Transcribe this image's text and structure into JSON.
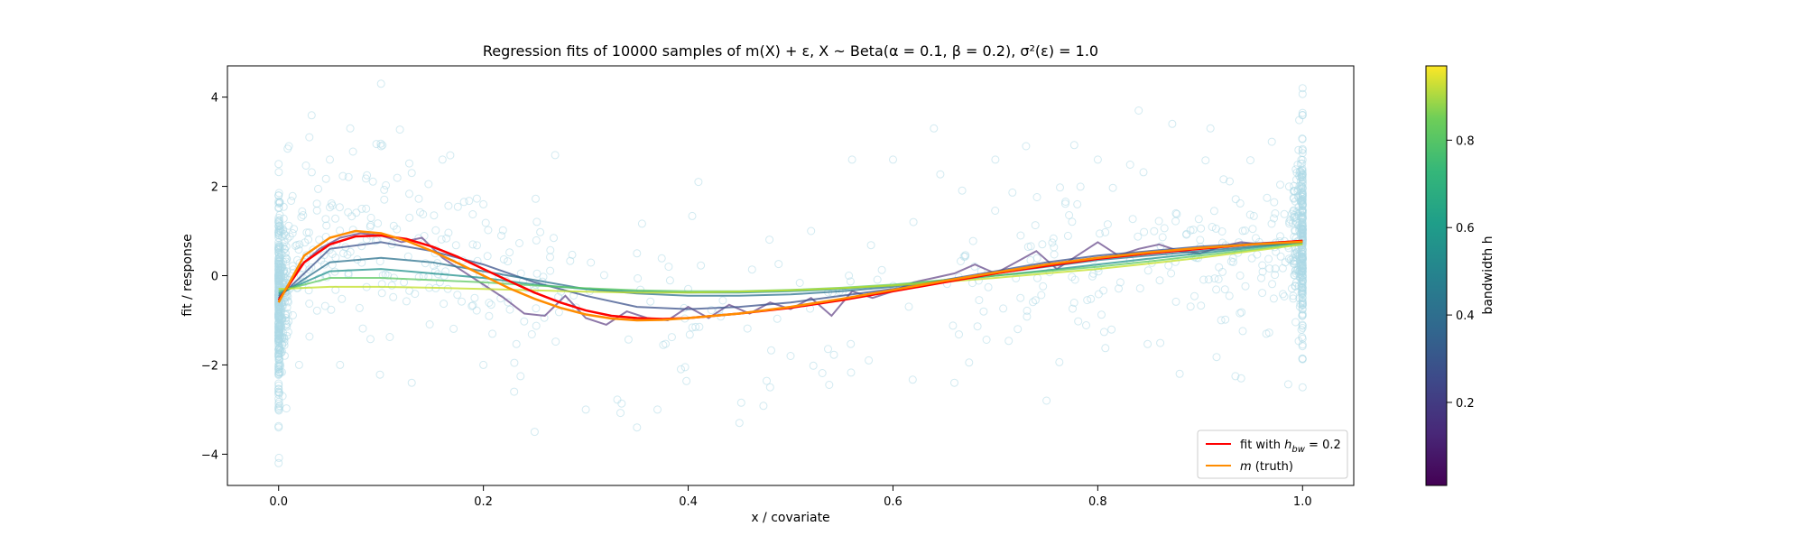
{
  "chart_data": {
    "type": "scatter",
    "title": "Regression fits of 10000 samples of m(X) + ε, X ~ Beta(α = 0.1, β = 0.2), σ²(ε) = 1.0",
    "xlabel": "x / covariate",
    "ylabel": "fit / response",
    "xlim": [
      -0.05,
      1.05
    ],
    "ylim": [
      -4.7,
      4.7
    ],
    "x_ticks": [
      0.0,
      0.2,
      0.4,
      0.6,
      0.8,
      1.0
    ],
    "x_tick_labels": [
      "0.0",
      "0.2",
      "0.4",
      "0.6",
      "0.8",
      "1.0"
    ],
    "y_ticks": [
      -4,
      -2,
      0,
      2,
      4
    ],
    "y_tick_labels": [
      "−4",
      "−2",
      "0",
      "2",
      "4"
    ],
    "grid": false,
    "scatter": {
      "marker": "hollow circle",
      "color": "#add8e6",
      "sample_points": [
        [
          0.0,
          -4.2
        ],
        [
          0.0,
          -3.4
        ],
        [
          0.0,
          -2.6
        ],
        [
          0.0,
          2.5
        ],
        [
          0.0,
          1.8
        ],
        [
          0.01,
          2.9
        ],
        [
          0.02,
          -2.0
        ],
        [
          0.03,
          3.1
        ],
        [
          0.05,
          2.6
        ],
        [
          0.07,
          3.3
        ],
        [
          0.1,
          2.9
        ],
        [
          0.13,
          2.3
        ],
        [
          0.16,
          2.6
        ],
        [
          0.2,
          -2.0
        ],
        [
          0.23,
          -2.6
        ],
        [
          0.25,
          -3.5
        ],
        [
          0.27,
          2.7
        ],
        [
          0.3,
          -3.0
        ],
        [
          0.35,
          -3.4
        ],
        [
          0.37,
          -3.0
        ],
        [
          0.41,
          2.1
        ],
        [
          0.45,
          -3.3
        ],
        [
          0.48,
          -2.5
        ],
        [
          0.52,
          1.0
        ],
        [
          0.56,
          2.6
        ],
        [
          0.6,
          2.6
        ],
        [
          0.64,
          3.3
        ],
        [
          0.66,
          -2.4
        ],
        [
          0.7,
          2.6
        ],
        [
          0.73,
          2.9
        ],
        [
          0.75,
          -2.8
        ],
        [
          0.8,
          2.6
        ],
        [
          0.84,
          3.7
        ],
        [
          0.88,
          -2.2
        ],
        [
          0.91,
          3.3
        ],
        [
          0.94,
          -2.3
        ],
        [
          0.97,
          3.0
        ],
        [
          1.0,
          4.2
        ],
        [
          1.0,
          -2.5
        ],
        [
          1.0,
          3.6
        ],
        [
          0.1,
          4.3
        ],
        [
          0.06,
          -2.0
        ],
        [
          0.13,
          -2.4
        ],
        [
          0.35,
          0.5
        ],
        [
          0.5,
          -1.8
        ],
        [
          0.78,
          1.6
        ],
        [
          0.9,
          0.8
        ],
        [
          0.2,
          1.6
        ],
        [
          0.4,
          -0.3
        ],
        [
          0.62,
          1.2
        ]
      ]
    },
    "bandwidth_fits": [
      {
        "h": 0.01,
        "color": "#6a4c8c",
        "x": [
          0.0,
          0.02,
          0.04,
          0.06,
          0.08,
          0.1,
          0.12,
          0.14,
          0.16,
          0.18,
          0.2,
          0.22,
          0.24,
          0.26,
          0.28,
          0.3,
          0.32,
          0.34,
          0.36,
          0.38,
          0.4,
          0.42,
          0.44,
          0.46,
          0.48,
          0.5,
          0.52,
          0.54,
          0.56,
          0.58,
          0.6,
          0.62,
          0.64,
          0.66,
          0.68,
          0.7,
          0.72,
          0.74,
          0.76,
          0.78,
          0.8,
          0.82,
          0.84,
          0.86,
          0.88,
          0.9,
          0.92,
          0.94,
          0.96,
          0.98,
          1.0
        ],
        "y": [
          -0.55,
          0.2,
          0.6,
          0.85,
          0.95,
          0.9,
          0.75,
          0.85,
          0.4,
          0.1,
          -0.2,
          -0.5,
          -0.85,
          -0.9,
          -0.45,
          -0.95,
          -1.1,
          -0.8,
          -0.95,
          -1.0,
          -0.7,
          -0.95,
          -0.65,
          -0.85,
          -0.6,
          -0.75,
          -0.5,
          -0.9,
          -0.35,
          -0.5,
          -0.35,
          -0.15,
          -0.05,
          0.05,
          0.25,
          0.05,
          0.3,
          0.55,
          0.15,
          0.45,
          0.75,
          0.45,
          0.6,
          0.7,
          0.55,
          0.5,
          0.65,
          0.75,
          0.7,
          0.72,
          0.78
        ]
      },
      {
        "h": 0.1,
        "color": "#3b528b",
        "x": [
          0.0,
          0.05,
          0.1,
          0.15,
          0.2,
          0.25,
          0.3,
          0.35,
          0.4,
          0.45,
          0.5,
          0.55,
          0.6,
          0.65,
          0.7,
          0.75,
          0.8,
          0.85,
          0.9,
          0.95,
          1.0
        ],
        "y": [
          -0.5,
          0.6,
          0.75,
          0.55,
          0.25,
          -0.15,
          -0.45,
          -0.7,
          -0.75,
          -0.7,
          -0.6,
          -0.45,
          -0.3,
          -0.1,
          0.1,
          0.3,
          0.45,
          0.55,
          0.65,
          0.72,
          0.78
        ]
      },
      {
        "h": 0.3,
        "color": "#2c728e",
        "x": [
          0.0,
          0.05,
          0.1,
          0.15,
          0.2,
          0.25,
          0.3,
          0.35,
          0.4,
          0.45,
          0.5,
          0.55,
          0.6,
          0.65,
          0.7,
          0.75,
          0.8,
          0.85,
          0.9,
          0.95,
          1.0
        ],
        "y": [
          -0.45,
          0.3,
          0.4,
          0.3,
          0.1,
          -0.1,
          -0.3,
          -0.4,
          -0.45,
          -0.45,
          -0.42,
          -0.35,
          -0.25,
          -0.1,
          0.05,
          0.2,
          0.35,
          0.45,
          0.55,
          0.65,
          0.75
        ]
      },
      {
        "h": 0.5,
        "color": "#21918c",
        "x": [
          0.0,
          0.05,
          0.1,
          0.15,
          0.2,
          0.25,
          0.3,
          0.35,
          0.4,
          0.45,
          0.5,
          0.55,
          0.6,
          0.65,
          0.7,
          0.75,
          0.8,
          0.85,
          0.9,
          0.95,
          1.0
        ],
        "y": [
          -0.4,
          0.1,
          0.15,
          0.05,
          -0.05,
          -0.2,
          -0.3,
          -0.35,
          -0.38,
          -0.38,
          -0.35,
          -0.3,
          -0.22,
          -0.12,
          0.0,
          0.12,
          0.25,
          0.38,
          0.5,
          0.62,
          0.75
        ]
      },
      {
        "h": 0.7,
        "color": "#5ec962",
        "x": [
          0.0,
          0.05,
          0.1,
          0.15,
          0.2,
          0.25,
          0.3,
          0.35,
          0.4,
          0.45,
          0.5,
          0.55,
          0.6,
          0.65,
          0.7,
          0.75,
          0.8,
          0.85,
          0.9,
          0.95,
          1.0
        ],
        "y": [
          -0.35,
          -0.05,
          -0.05,
          -0.1,
          -0.15,
          -0.22,
          -0.28,
          -0.33,
          -0.35,
          -0.35,
          -0.32,
          -0.27,
          -0.2,
          -0.1,
          0.0,
          0.1,
          0.2,
          0.32,
          0.45,
          0.58,
          0.72
        ]
      },
      {
        "h": 0.9,
        "color": "#c2df23",
        "x": [
          0.0,
          0.05,
          0.1,
          0.15,
          0.2,
          0.25,
          0.3,
          0.35,
          0.4,
          0.45,
          0.5,
          0.55,
          0.6,
          0.65,
          0.7,
          0.75,
          0.8,
          0.85,
          0.9,
          0.95,
          1.0
        ],
        "y": [
          -0.3,
          -0.25,
          -0.25,
          -0.27,
          -0.3,
          -0.33,
          -0.36,
          -0.38,
          -0.38,
          -0.36,
          -0.33,
          -0.28,
          -0.22,
          -0.14,
          -0.05,
          0.05,
          0.15,
          0.27,
          0.4,
          0.55,
          0.7
        ]
      }
    ],
    "series": [
      {
        "name": "fit with h_bw = 0.2",
        "color": "#ff0000",
        "x": [
          0.0,
          0.025,
          0.05,
          0.075,
          0.1,
          0.125,
          0.15,
          0.175,
          0.2,
          0.225,
          0.25,
          0.275,
          0.3,
          0.325,
          0.35,
          0.375,
          0.4,
          0.45,
          0.5,
          0.55,
          0.6,
          0.65,
          0.7,
          0.75,
          0.8,
          0.85,
          0.9,
          0.95,
          1.0
        ],
        "y": [
          -0.55,
          0.3,
          0.7,
          0.88,
          0.9,
          0.82,
          0.65,
          0.42,
          0.15,
          -0.12,
          -0.38,
          -0.6,
          -0.78,
          -0.9,
          -0.95,
          -0.97,
          -0.95,
          -0.85,
          -0.72,
          -0.55,
          -0.35,
          -0.15,
          0.05,
          0.22,
          0.38,
          0.5,
          0.6,
          0.7,
          0.78
        ]
      },
      {
        "name": "m (truth)",
        "color": "#ff8c00",
        "x": [
          0.0,
          0.025,
          0.05,
          0.075,
          0.1,
          0.125,
          0.15,
          0.175,
          0.2,
          0.225,
          0.25,
          0.275,
          0.3,
          0.325,
          0.35,
          0.375,
          0.4,
          0.45,
          0.5,
          0.55,
          0.6,
          0.65,
          0.7,
          0.75,
          0.8,
          0.85,
          0.9,
          0.95,
          1.0
        ],
        "y": [
          -0.6,
          0.45,
          0.85,
          1.0,
          0.95,
          0.78,
          0.55,
          0.28,
          0.0,
          -0.28,
          -0.52,
          -0.72,
          -0.87,
          -0.96,
          -1.0,
          -0.99,
          -0.95,
          -0.85,
          -0.7,
          -0.52,
          -0.32,
          -0.12,
          0.07,
          0.25,
          0.4,
          0.52,
          0.62,
          0.7,
          0.76
        ]
      }
    ],
    "legend": {
      "placement": "lower-right",
      "items": [
        {
          "label_prefix": "fit with ",
          "label_math": "h",
          "label_sub": "bw",
          "label_suffix": " = 0.2",
          "color": "#ff0000"
        },
        {
          "label_math": "m",
          "label_suffix": " (truth)",
          "color": "#ff8c00"
        }
      ]
    },
    "colorbar": {
      "label": "bandwidth h",
      "colormap": "viridis",
      "range": [
        0.01,
        0.97
      ],
      "ticks": [
        0.2,
        0.4,
        0.6,
        0.8
      ],
      "tick_labels": [
        "0.2",
        "0.4",
        "0.6",
        "0.8"
      ]
    }
  }
}
